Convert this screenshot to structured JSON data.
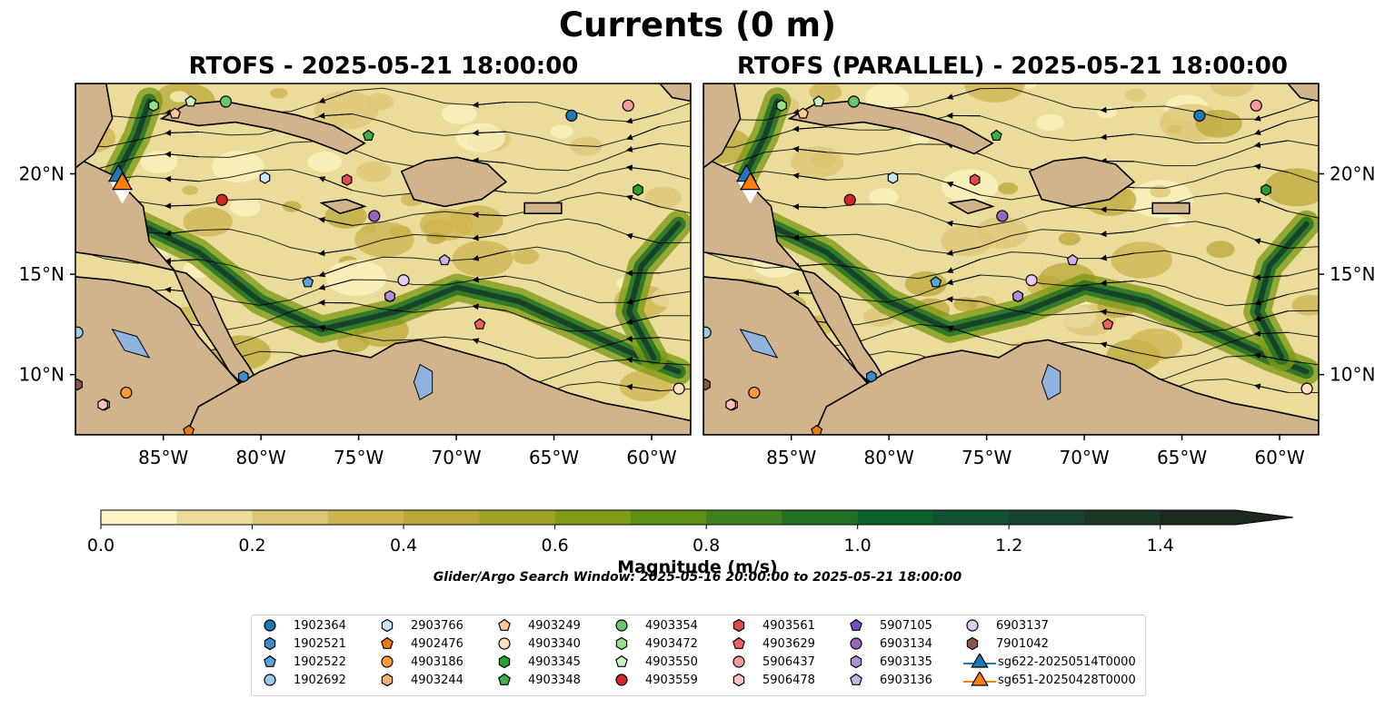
{
  "figure": {
    "suptitle": "Currents (0 m)",
    "colorbar_label": "Magnitude (m/s)",
    "search_window": "Glider/Argo Search Window: 2025-05-16 20:00:00 to 2025-05-21 18:00:00"
  },
  "chart_data": [
    {
      "type": "heatmap",
      "title": "RTOFS - 2025-05-21 18:00:00",
      "xlim": [
        -89.5,
        -58.0
      ],
      "ylim": [
        7.0,
        24.5
      ],
      "xticks": [
        "85°W",
        "80°W",
        "75°W",
        "70°W",
        "65°W",
        "60°W"
      ],
      "yticks": [
        "10°N",
        "15°N",
        "20°N"
      ],
      "ytick_side": "left",
      "variable": "surface current speed with streamlines"
    },
    {
      "type": "heatmap",
      "title": "RTOFS (PARALLEL) - 2025-05-21 18:00:00",
      "xlim": [
        -89.5,
        -58.0
      ],
      "ylim": [
        7.0,
        24.5
      ],
      "xticks": [
        "85°W",
        "80°W",
        "75°W",
        "70°W",
        "65°W",
        "60°W"
      ],
      "yticks": [
        "10°N",
        "15°N",
        "20°N"
      ],
      "ytick_side": "right",
      "variable": "surface current speed with streamlines"
    }
  ],
  "colorbar": {
    "min": 0.0,
    "max": 1.5,
    "step": 0.1,
    "extend": "max",
    "ticks": [
      "0.0",
      "0.2",
      "0.4",
      "0.6",
      "0.8",
      "1.0",
      "1.2",
      "1.4"
    ],
    "colors": [
      "#fbf4c2",
      "#ebdc9c",
      "#dcc575",
      "#cdb34e",
      "#bba83a",
      "#9fa227",
      "#7f9b18",
      "#5e9014",
      "#3e8220",
      "#217226",
      "#0c6229",
      "#125131",
      "#17432b",
      "#1c3723",
      "#1c2a1c"
    ]
  },
  "land_color": "#d2b48c",
  "lake_color": "#8fb3de",
  "platforms": [
    {
      "id": "1902364",
      "marker": "circle",
      "color": "#1f77b4",
      "lon": -64.1,
      "lat": 22.9
    },
    {
      "id": "1902521",
      "marker": "hexagon",
      "color": "#3a8ccd",
      "lon": -80.9,
      "lat": 9.9
    },
    {
      "id": "1902522",
      "marker": "pentagon",
      "color": "#5aa3dc",
      "lon": -77.6,
      "lat": 14.6
    },
    {
      "id": "1902692",
      "marker": "circle",
      "color": "#9ecae9",
      "lon": -89.4,
      "lat": 12.1
    },
    {
      "id": "2903766",
      "marker": "hexagon",
      "color": "#c8e6fa",
      "lon": -79.8,
      "lat": 19.8
    },
    {
      "id": "4902476",
      "marker": "pentagon",
      "color": "#f07a10",
      "lon": -83.7,
      "lat": 7.2
    },
    {
      "id": "4903186",
      "marker": "circle",
      "color": "#ff9a3a",
      "lon": -86.9,
      "lat": 9.1
    },
    {
      "id": "4903244",
      "marker": "hexagon",
      "color": "#ffb06a",
      "lon": -88.0,
      "lat": 8.5
    },
    {
      "id": "4903249",
      "marker": "pentagon",
      "color": "#ffc896",
      "lon": -84.4,
      "lat": 23.0
    },
    {
      "id": "4903340",
      "marker": "circle",
      "color": "#ffe0c0",
      "lon": -58.6,
      "lat": 9.3
    },
    {
      "id": "4903345",
      "marker": "hexagon",
      "color": "#2ca02c",
      "lon": -60.7,
      "lat": 19.2
    },
    {
      "id": "4903348",
      "marker": "pentagon",
      "color": "#3cb043",
      "lon": -74.5,
      "lat": 21.9
    },
    {
      "id": "4903354",
      "marker": "circle",
      "color": "#6cc56a",
      "lon": -81.8,
      "lat": 23.6
    },
    {
      "id": "4903472",
      "marker": "hexagon",
      "color": "#98df8a",
      "lon": -85.5,
      "lat": 23.4
    },
    {
      "id": "4903550",
      "marker": "pentagon",
      "color": "#c8f0c0",
      "lon": -83.6,
      "lat": 23.6
    },
    {
      "id": "4903559",
      "marker": "circle",
      "color": "#d62728",
      "lon": -82.0,
      "lat": 18.7
    },
    {
      "id": "4903561",
      "marker": "hexagon",
      "color": "#e04a4a",
      "lon": -75.6,
      "lat": 19.7
    },
    {
      "id": "4903629",
      "marker": "pentagon",
      "color": "#ef6060",
      "lon": -68.8,
      "lat": 12.5
    },
    {
      "id": "5906437",
      "marker": "circle",
      "color": "#f39a9a",
      "lon": -61.2,
      "lat": 23.4
    },
    {
      "id": "5906478",
      "marker": "hexagon",
      "color": "#f8c0c0",
      "lon": -88.1,
      "lat": 8.5
    },
    {
      "id": "5907105",
      "marker": "pentagon",
      "color": "#7b4fbf",
      "lon": -73.4,
      "lat": 13.9
    },
    {
      "id": "6903134",
      "marker": "circle",
      "color": "#9467bd",
      "lon": -74.2,
      "lat": 17.9
    },
    {
      "id": "6903135",
      "marker": "hexagon",
      "color": "#b08fd6",
      "lon": -73.4,
      "lat": 13.9
    },
    {
      "id": "6903136",
      "marker": "pentagon",
      "color": "#c9b4e8",
      "lon": -70.6,
      "lat": 15.7
    },
    {
      "id": "6903137",
      "marker": "circle",
      "color": "#e0cdf5",
      "lon": -72.7,
      "lat": 14.7
    },
    {
      "id": "7901042",
      "marker": "hexagon",
      "color": "#8c564b",
      "lon": -89.4,
      "lat": 9.5
    }
  ],
  "gliders": [
    {
      "id": "sg622-20250514T0000",
      "marker": "triangle",
      "color": "#1f77b4",
      "lon": -87.3,
      "lat": 19.9
    },
    {
      "id": "sg651-20250428T0000",
      "marker": "triangle",
      "color": "#ff7f0e",
      "lon": -87.1,
      "lat": 19.5
    }
  ]
}
